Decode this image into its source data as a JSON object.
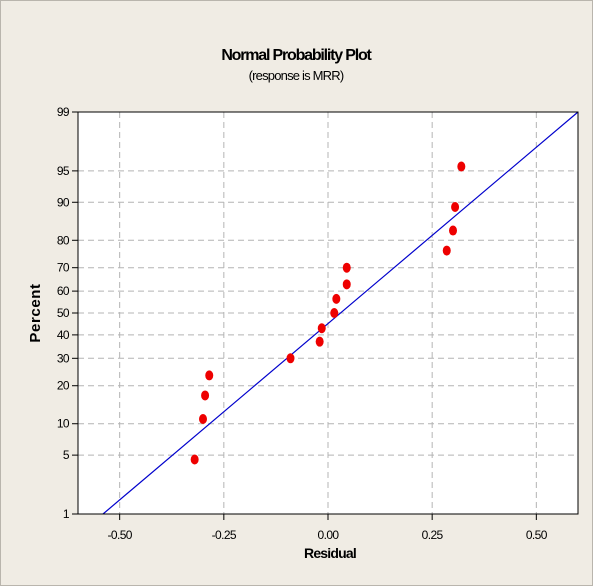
{
  "chart_data": {
    "type": "scatter",
    "title": "Normal Probability Plot",
    "subtitle": "(response is MRR)",
    "xlabel": "Residual",
    "ylabel": "Percent",
    "xlim": [
      -0.6,
      0.6
    ],
    "ylim": [
      1,
      99
    ],
    "y_scale": "normal-probability",
    "grid": true,
    "x_ticks": [
      -0.5,
      -0.25,
      0.0,
      0.25,
      0.5
    ],
    "x_tick_labels": [
      "-0.50",
      "-0.25",
      "0.00",
      "0.25",
      "0.50"
    ],
    "y_ticks": [
      1,
      5,
      10,
      20,
      30,
      40,
      50,
      60,
      70,
      80,
      90,
      95,
      99
    ],
    "y_tick_labels": [
      "1",
      "5",
      "10",
      "20",
      "30",
      "40",
      "50",
      "60",
      "70",
      "80",
      "90",
      "95",
      "99"
    ],
    "points": [
      {
        "x": -0.32,
        "y": 4.5
      },
      {
        "x": -0.3,
        "y": 11
      },
      {
        "x": -0.295,
        "y": 17
      },
      {
        "x": -0.285,
        "y": 23.5
      },
      {
        "x": -0.09,
        "y": 30
      },
      {
        "x": -0.02,
        "y": 37
      },
      {
        "x": -0.015,
        "y": 43
      },
      {
        "x": 0.015,
        "y": 50
      },
      {
        "x": 0.02,
        "y": 56.5
      },
      {
        "x": 0.045,
        "y": 63
      },
      {
        "x": 0.045,
        "y": 70
      },
      {
        "x": 0.285,
        "y": 76.5
      },
      {
        "x": 0.3,
        "y": 83
      },
      {
        "x": 0.305,
        "y": 89
      },
      {
        "x": 0.32,
        "y": 95.5
      }
    ],
    "fit_line": {
      "x": [
        -0.54,
        0.6
      ],
      "y": [
        1,
        99
      ]
    },
    "colors": {
      "points": "#ee0000",
      "fit_line": "#0000cc",
      "grid": "#b4b4b4",
      "figure_background": "#f0ece4",
      "plot_background": "#ffffff"
    }
  }
}
